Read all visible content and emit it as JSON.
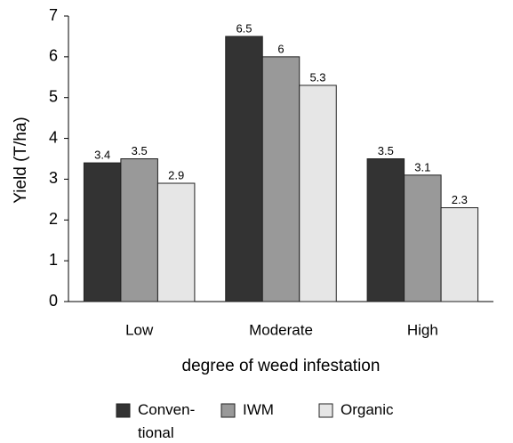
{
  "chart_data": {
    "type": "bar",
    "categories": [
      "Low",
      "Moderate",
      "High"
    ],
    "series": [
      {
        "name": "Conven-\ntional",
        "color": "#333333",
        "values": [
          3.4,
          6.5,
          3.5
        ]
      },
      {
        "name": "IWM",
        "color": "#999999",
        "values": [
          3.5,
          6,
          3.1
        ]
      },
      {
        "name": "Organic",
        "color": "#e6e6e6",
        "values": [
          2.9,
          5.3,
          2.3
        ]
      }
    ],
    "xlabel": "degree of weed infestation",
    "ylabel": "Yield (T/ha)",
    "ylim": [
      0,
      7
    ],
    "yticks": [
      0,
      1,
      2,
      3,
      4,
      5,
      6,
      7
    ],
    "grid": false,
    "legend": "bottom",
    "data_labels": true
  }
}
